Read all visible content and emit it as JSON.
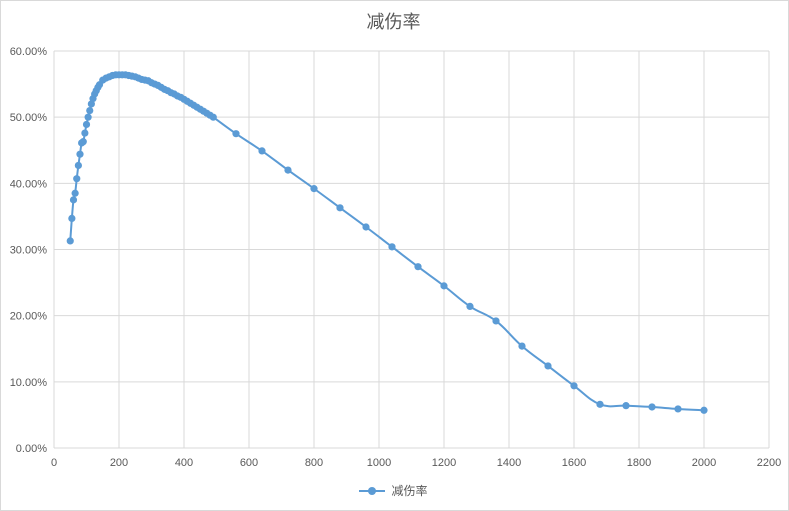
{
  "chart_data": {
    "type": "line",
    "title": "减伤率",
    "xlabel": "",
    "ylabel": "",
    "xlim": [
      0,
      2200
    ],
    "ylim": [
      0,
      0.6
    ],
    "x_ticks": [
      "0",
      "200",
      "400",
      "600",
      "800",
      "1000",
      "1200",
      "1400",
      "1600",
      "1800",
      "2000",
      "2200"
    ],
    "y_ticks": [
      "0.00%",
      "10.00%",
      "20.00%",
      "30.00%",
      "40.00%",
      "50.00%",
      "60.00%"
    ],
    "grid": true,
    "legend_position": "bottom",
    "color": "#5b9bd5",
    "series": [
      {
        "name": "减伤率",
        "x": [
          50,
          55,
          60,
          65,
          70,
          75,
          80,
          85,
          90,
          95,
          100,
          105,
          110,
          115,
          120,
          125,
          130,
          135,
          140,
          150,
          160,
          170,
          180,
          190,
          200,
          210,
          220,
          230,
          240,
          250,
          260,
          270,
          280,
          290,
          300,
          310,
          320,
          330,
          340,
          350,
          360,
          370,
          380,
          390,
          400,
          410,
          420,
          430,
          440,
          450,
          460,
          470,
          480,
          490,
          560,
          640,
          720,
          800,
          880,
          960,
          1040,
          1120,
          1200,
          1280,
          1360,
          1440,
          1520,
          1600,
          1680,
          1760,
          1840,
          1920,
          2000
        ],
        "y": [
          0.313,
          0.347,
          0.375,
          0.385,
          0.407,
          0.427,
          0.444,
          0.461,
          0.463,
          0.476,
          0.489,
          0.5,
          0.51,
          0.52,
          0.528,
          0.535,
          0.54,
          0.545,
          0.549,
          0.556,
          0.559,
          0.561,
          0.563,
          0.564,
          0.564,
          0.564,
          0.564,
          0.563,
          0.562,
          0.561,
          0.559,
          0.557,
          0.556,
          0.555,
          0.552,
          0.55,
          0.548,
          0.545,
          0.542,
          0.54,
          0.537,
          0.535,
          0.532,
          0.53,
          0.527,
          0.524,
          0.521,
          0.518,
          0.515,
          0.512,
          0.509,
          0.506,
          0.503,
          0.5,
          0.475,
          0.449,
          0.42,
          0.392,
          0.363,
          0.334,
          0.304,
          0.274,
          0.245,
          0.214,
          0.192,
          0.154,
          0.124,
          0.094,
          0.066,
          0.064,
          0.062,
          0.059,
          0.057
        ]
      }
    ]
  }
}
